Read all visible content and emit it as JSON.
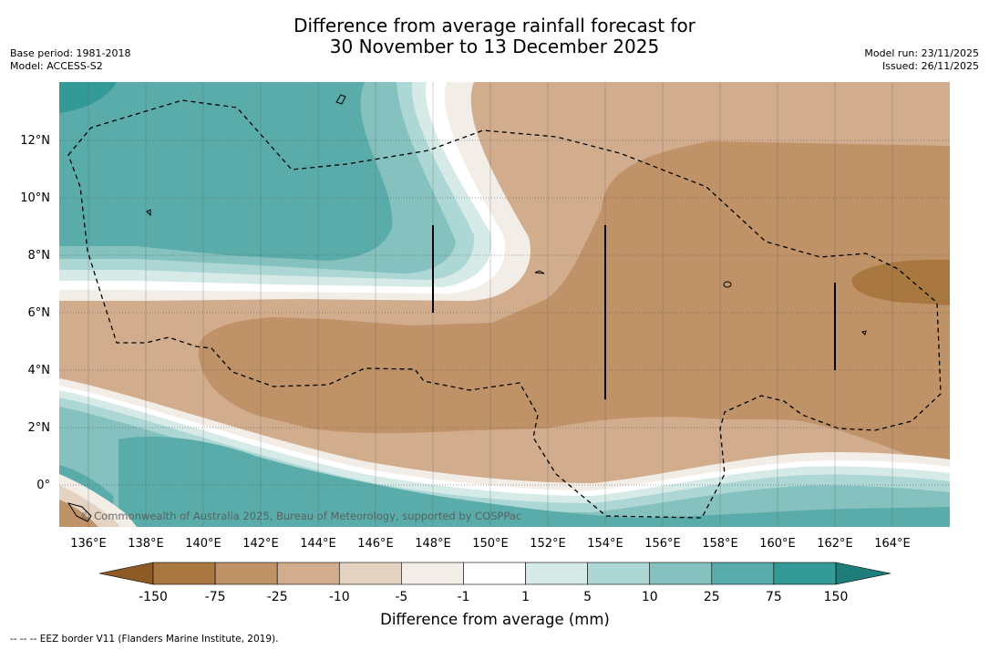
{
  "header": {
    "title_line1": "Difference from average rainfall forecast for",
    "title_line2": "30 November to 13 December 2025",
    "base_period": "Base period: 1981-2018",
    "model": "Model: ACCESS-S2",
    "model_run": "Model run: 23/11/2025",
    "issued": "Issued: 26/11/2025"
  },
  "map": {
    "lat_labels": [
      "12°N",
      "10°N",
      "8°N",
      "6°N",
      "4°N",
      "2°N",
      "0°"
    ],
    "lon_labels": [
      "136°E",
      "138°E",
      "140°E",
      "142°E",
      "144°E",
      "146°E",
      "148°E",
      "150°E",
      "152°E",
      "154°E",
      "156°E",
      "158°E",
      "160°E",
      "162°E",
      "164°E"
    ],
    "copyright": "© Commonwealth of Australia 2025, Bureau of Meteorology, supported by COSPPac"
  },
  "legend": {
    "labels": [
      "-150",
      "-75",
      "-25",
      "-10",
      "-5",
      "-1",
      "1",
      "5",
      "10",
      "25",
      "75",
      "150"
    ],
    "colors": [
      "#a97740",
      "#bf9268",
      "#d1ad8e",
      "#e4d2c2",
      "#f3ede8",
      "#ffffff",
      "#d6eae7",
      "#acd7d4",
      "#85c1bf",
      "#5aacab",
      "#349a97"
    ],
    "under_color": "#8e5b27",
    "over_color": "#1e7d79",
    "title": "Difference from average (mm)"
  },
  "footnote": "--  --  -- EEZ border V11 (Flanders Marine Institute, 2019)."
}
